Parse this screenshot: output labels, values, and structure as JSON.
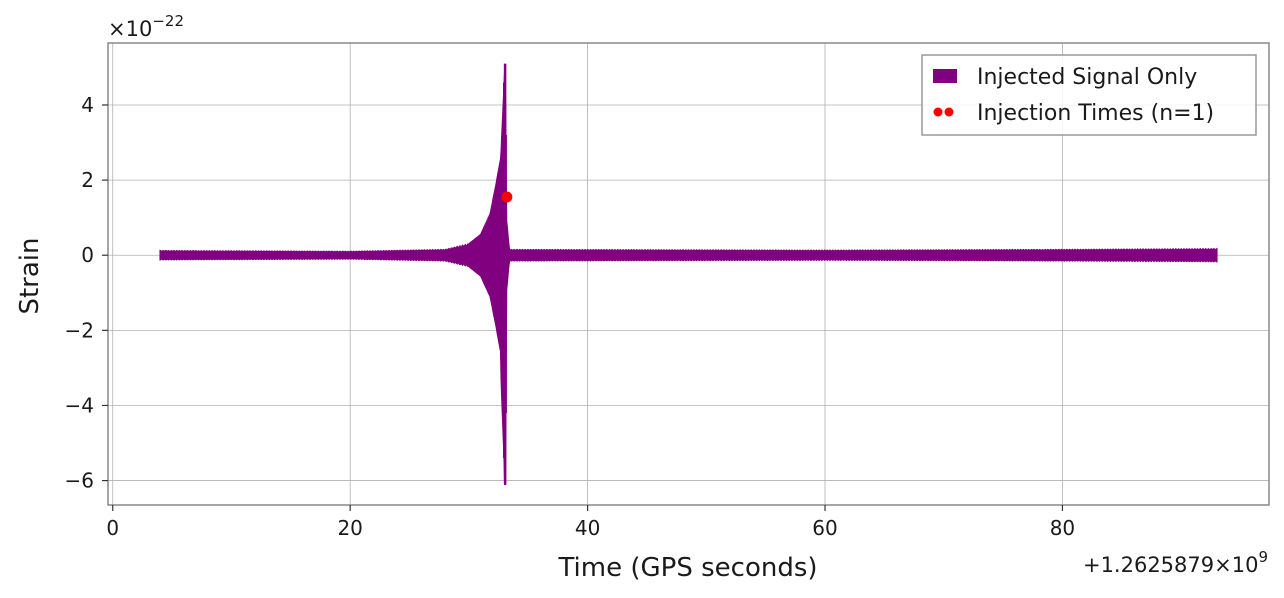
{
  "chart_data": {
    "type": "line",
    "title": "",
    "xlabel": "Time (GPS seconds)",
    "ylabel": "Strain",
    "xlim": [
      -0.4,
      97.4
    ],
    "ylim": [
      -6.65,
      5.65
    ],
    "x_ticks": [
      0,
      20,
      40,
      60,
      80
    ],
    "y_ticks": [
      -6,
      -4,
      -2,
      0,
      2,
      4
    ],
    "x_tick_labels": [
      "0",
      "20",
      "40",
      "60",
      "80"
    ],
    "y_tick_labels": [
      "−6",
      "−4",
      "−2",
      "0",
      "2",
      "4"
    ],
    "x_offset_text": "+1.2625879×10",
    "x_offset_exp": "9",
    "y_scale_text": "×10",
    "y_scale_exp": "−22",
    "grid": true,
    "legend_position": "top-right",
    "series": [
      {
        "name": "Injected Signal Only",
        "type": "line",
        "color": "#800080",
        "x_range": [
          4.0,
          93.0
        ],
        "baseline_amplitude": 0.12,
        "envelope": [
          [
            4.0,
            0.12
          ],
          [
            20.0,
            0.1
          ],
          [
            28.0,
            0.15
          ],
          [
            30.0,
            0.3
          ],
          [
            31.0,
            0.55
          ],
          [
            31.8,
            1.1
          ],
          [
            32.3,
            1.9
          ],
          [
            32.7,
            2.6
          ],
          [
            32.9,
            4.0
          ],
          [
            33.05,
            5.1
          ],
          [
            33.15,
            1.0
          ],
          [
            33.4,
            0.15
          ],
          [
            60.0,
            0.13
          ],
          [
            80.0,
            0.15
          ],
          [
            93.0,
            0.17
          ]
        ],
        "envelope_negative_peak": -6.1
      },
      {
        "name": "Injection Times (n=1)",
        "type": "scatter",
        "color": "#ff0000",
        "points": [
          {
            "x": 33.2,
            "y": 1.55
          }
        ]
      }
    ]
  }
}
